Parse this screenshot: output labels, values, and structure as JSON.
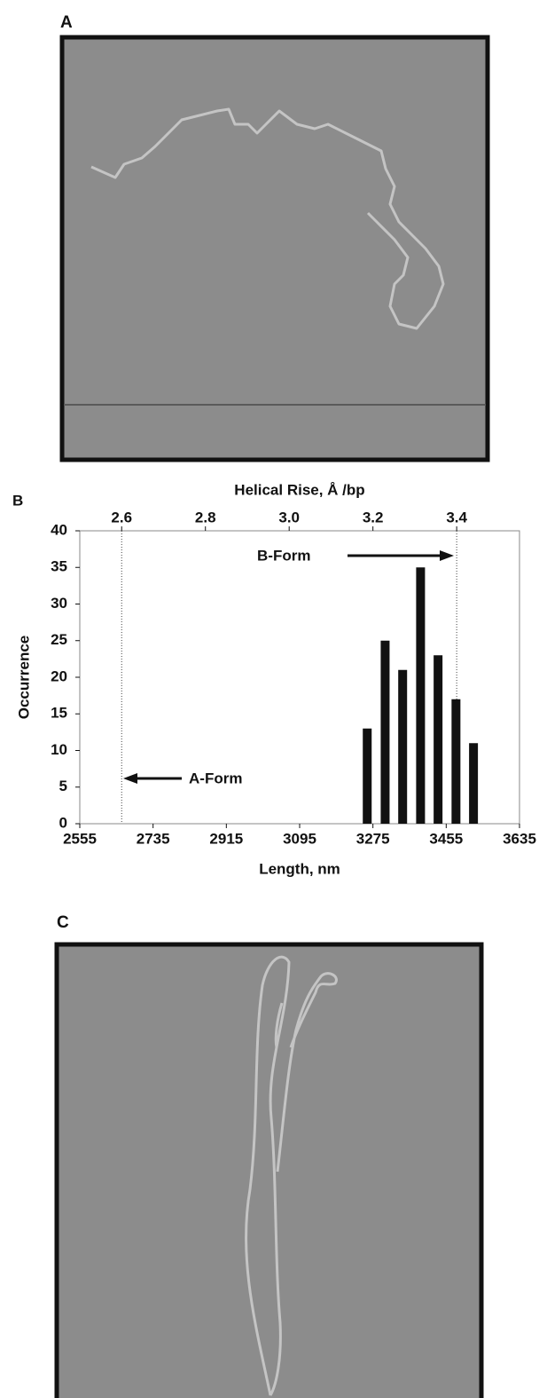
{
  "panel_a_label": "A",
  "panel_c_label": "C",
  "chart_data": {
    "type": "bar",
    "panel_label": "B",
    "x": [
      3261,
      3305,
      3348,
      3392,
      3435,
      3479,
      3522
    ],
    "values": [
      13,
      25,
      21,
      35,
      23,
      17,
      11
    ],
    "color": "#111111",
    "xlabel": "Length, nm",
    "ylabel": "Occurrence",
    "x2label": "Helical Rise, Å /bp",
    "xlim": [
      2555,
      3635
    ],
    "xticks": [
      2555,
      2735,
      2915,
      3095,
      3275,
      3455,
      3635
    ],
    "ylim": [
      0,
      40
    ],
    "yticks": [
      0,
      5,
      10,
      15,
      20,
      25,
      30,
      35,
      40
    ],
    "x2lim": [
      2.5,
      3.55
    ],
    "x2ticks": [
      2.6,
      2.8,
      {
        "value": 3.0,
        "label": "3.0"
      },
      3.2,
      3.4
    ],
    "reference_lines": [
      2.6,
      3.4
    ],
    "annotations": [
      "B-Form",
      "A-Form"
    ]
  }
}
